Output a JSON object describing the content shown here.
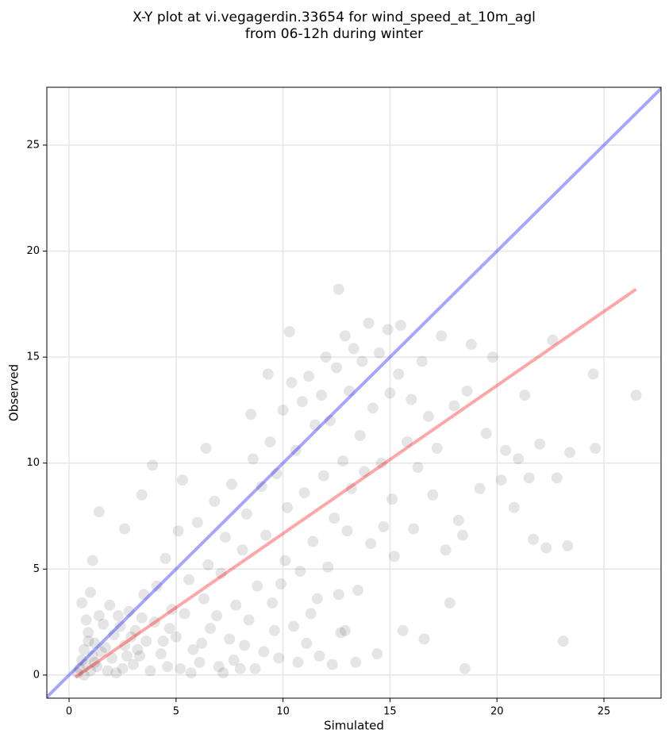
{
  "chart_data": {
    "type": "scatter",
    "title": [
      "X-Y plot at vi.vegagerdin.33654 for wind_speed_at_10m_agl",
      "from 06-12h during winter"
    ],
    "xlabel": "Simulated",
    "ylabel": "Observed",
    "xlim": [
      -1.04,
      27.67
    ],
    "ylim": [
      -1.09,
      27.73
    ],
    "xticks": [
      0,
      5,
      10,
      15,
      20,
      25
    ],
    "yticks": [
      0,
      5,
      10,
      15,
      20,
      25
    ],
    "grid": true,
    "series": [
      {
        "type": "scatter",
        "color": "#000000",
        "alpha": 0.1,
        "x": [
          0.5,
          0.7,
          0.8,
          0.9,
          1.0,
          1.1,
          1.2,
          0.6,
          0.8,
          1.3,
          1.5,
          1.6,
          1.8,
          2.0,
          2.1,
          2.3,
          2.5,
          2.6,
          2.8,
          3.0,
          3.1,
          3.3,
          3.5,
          3.6,
          3.8,
          4.0,
          4.1,
          4.3,
          4.5,
          4.6,
          4.8,
          5.0,
          5.1,
          5.2,
          5.4,
          5.6,
          5.8,
          6.0,
          6.1,
          6.3,
          6.5,
          6.6,
          6.8,
          7.0,
          7.1,
          7.3,
          7.5,
          7.6,
          7.8,
          8.0,
          8.1,
          8.3,
          8.4,
          8.6,
          8.8,
          9.0,
          9.1,
          9.2,
          9.4,
          9.5,
          9.7,
          9.8,
          10.0,
          10.1,
          10.2,
          10.4,
          10.5,
          10.6,
          10.8,
          10.9,
          11.0,
          11.1,
          11.2,
          11.4,
          11.5,
          11.6,
          11.8,
          11.9,
          12.0,
          12.1,
          12.2,
          12.4,
          12.5,
          12.6,
          12.7,
          12.8,
          12.9,
          13.0,
          13.1,
          13.2,
          13.3,
          13.5,
          13.6,
          13.7,
          13.8,
          14.0,
          14.1,
          14.2,
          14.4,
          14.5,
          14.6,
          14.7,
          14.9,
          15.0,
          15.1,
          15.2,
          15.4,
          15.5,
          15.6,
          15.8,
          16.0,
          16.1,
          16.3,
          16.5,
          16.6,
          16.8,
          17.0,
          17.2,
          17.4,
          17.6,
          17.8,
          18.0,
          18.2,
          18.4,
          18.5,
          18.6,
          18.8,
          19.2,
          19.5,
          19.8,
          20.2,
          20.4,
          20.8,
          21.0,
          21.3,
          21.5,
          21.7,
          22.0,
          22.3,
          22.6,
          22.8,
          23.1,
          23.4,
          23.3,
          24.5,
          24.6,
          26.5,
          0.4,
          0.6,
          0.7,
          0.9,
          1.0,
          1.2,
          1.4,
          1.7,
          1.9,
          2.2,
          2.4,
          2.7,
          2.9,
          3.2,
          3.4,
          3.4,
          3.9,
          1.4,
          1.1,
          2.6,
          4.4,
          4.7,
          5.3,
          5.7,
          6.2,
          6.4,
          6.9,
          7.2,
          7.7,
          8.2,
          8.5,
          8.7,
          9.3,
          9.6,
          9.9,
          10.3,
          10.7,
          11.3,
          11.7,
          12.3,
          12.6,
          13.4,
          12.9
        ],
        "values": [
          0.3,
          1.2,
          0.5,
          2.0,
          0.2,
          0.9,
          1.5,
          3.4,
          2.6,
          0.4,
          1.1,
          2.4,
          0.2,
          0.8,
          1.9,
          2.8,
          0.3,
          1.4,
          3.0,
          0.5,
          2.1,
          0.9,
          3.8,
          1.6,
          0.2,
          2.5,
          4.2,
          1.0,
          5.5,
          0.4,
          3.1,
          1.8,
          6.8,
          0.3,
          2.9,
          4.5,
          1.2,
          7.2,
          0.6,
          3.6,
          5.2,
          2.2,
          8.2,
          0.4,
          4.8,
          6.5,
          1.7,
          9.0,
          3.3,
          0.3,
          5.9,
          7.6,
          2.6,
          10.2,
          4.2,
          8.9,
          1.1,
          6.6,
          11.0,
          3.4,
          9.5,
          0.8,
          12.5,
          5.4,
          7.9,
          13.8,
          2.3,
          10.6,
          4.9,
          12.9,
          8.6,
          1.5,
          14.1,
          6.3,
          11.8,
          3.6,
          13.2,
          9.4,
          15.0,
          5.1,
          12.0,
          7.4,
          14.5,
          18.2,
          2.0,
          10.1,
          16.0,
          6.8,
          13.4,
          8.8,
          15.4,
          4.0,
          11.3,
          14.8,
          9.6,
          16.6,
          6.2,
          12.6,
          1.0,
          15.2,
          10.0,
          7.0,
          16.3,
          13.3,
          8.3,
          5.6,
          14.2,
          16.5,
          2.1,
          11.0,
          13.0,
          6.9,
          9.8,
          14.8,
          1.7,
          12.2,
          8.5,
          10.7,
          16.0,
          5.9,
          3.4,
          12.7,
          7.3,
          6.6,
          0.3,
          13.4,
          15.6,
          8.8,
          11.4,
          15.0,
          9.2,
          10.6,
          7.9,
          10.2,
          13.2,
          9.3,
          6.4,
          10.9,
          6.0,
          15.8,
          9.3,
          1.6,
          10.5,
          6.1,
          14.2,
          10.7,
          13.2,
          0.1,
          0.7,
          0.0,
          1.6,
          3.9,
          0.6,
          2.8,
          1.3,
          3.3,
          0.1,
          2.3,
          0.9,
          1.8,
          1.2,
          2.7,
          8.5,
          9.9,
          7.7,
          5.4,
          6.9,
          1.6,
          2.2,
          9.2,
          0.1,
          1.5,
          10.7,
          2.8,
          0.1,
          0.7,
          1.4,
          12.3,
          0.3,
          14.2,
          2.1,
          4.3,
          16.2,
          0.6,
          2.9,
          0.9,
          0.5,
          3.8,
          0.6,
          2.1
        ]
      },
      {
        "type": "line",
        "color": "#0000ff",
        "alpha": 0.35,
        "x": [
          -1.04,
          27.67
        ],
        "values": [
          -1.04,
          27.67
        ]
      },
      {
        "type": "line",
        "color": "#ff0000",
        "alpha": 0.35,
        "x": [
          0.3,
          26.5
        ],
        "values": [
          -0.1,
          18.2
        ]
      }
    ]
  }
}
